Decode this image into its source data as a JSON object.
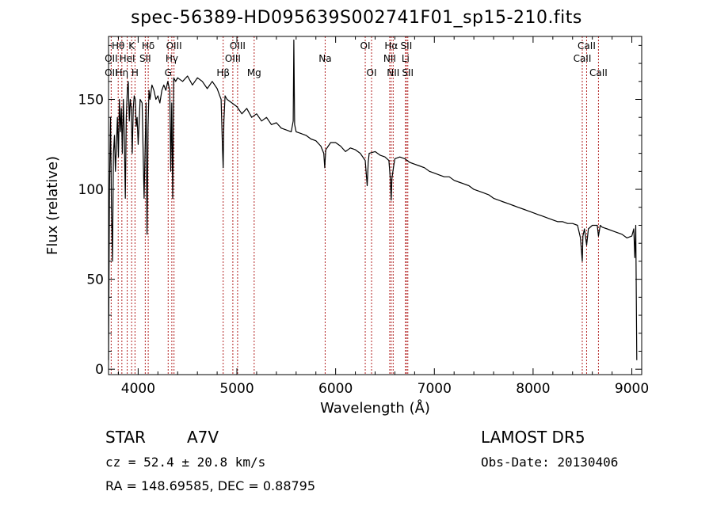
{
  "header": {
    "title": "spec-56389-HD095639S002741F01_sp15-210.fits"
  },
  "info": {
    "object_class": "STAR",
    "subclass": "A7V",
    "survey": "LAMOST DR5",
    "redshift_text": "cz = 52.4 ± 20.8 km/s",
    "obs_date_text": "Obs-Date: 20130406",
    "radec_text": "RA = 148.69585, DEC =   0.88795"
  },
  "chart_data": {
    "type": "line",
    "title": "spec-56389-HD095639S002741F01_sp15-210.fits",
    "xlabel": "Wavelength (Å)",
    "ylabel": "Flux (relative)",
    "xlim": [
      3700,
      9100
    ],
    "ylim": [
      -3,
      185
    ],
    "grid": false,
    "x_ticks": [
      4000,
      5000,
      6000,
      7000,
      8000,
      9000
    ],
    "y_ticks": [
      0,
      50,
      100,
      150
    ],
    "line_color": "#000000",
    "marker_color": "#b22222",
    "series": [
      {
        "x": [
          3700,
          3710,
          3720,
          3730,
          3740,
          3750,
          3760,
          3770,
          3780,
          3790,
          3800,
          3810,
          3820,
          3830,
          3840,
          3850,
          3860,
          3870,
          3880,
          3890,
          3900,
          3910,
          3920,
          3930,
          3940,
          3950,
          3960,
          3970,
          3980,
          3990,
          4000,
          4020,
          4040,
          4060,
          4080,
          4090,
          4100,
          4110,
          4120,
          4140,
          4160,
          4180,
          4200,
          4220,
          4240,
          4260,
          4280,
          4300,
          4320,
          4330,
          4340,
          4350,
          4360,
          4380,
          4400,
          4450,
          4500,
          4550,
          4600,
          4650,
          4700,
          4750,
          4800,
          4840,
          4855,
          4861,
          4868,
          4880,
          4900,
          4950,
          5000,
          5050,
          5100,
          5150,
          5200,
          5250,
          5300,
          5350,
          5400,
          5450,
          5500,
          5550,
          5570,
          5577,
          5585,
          5600,
          5650,
          5700,
          5750,
          5800,
          5850,
          5880,
          5890,
          5900,
          5950,
          6000,
          6050,
          6100,
          6150,
          6200,
          6250,
          6300,
          6320,
          6330,
          6340,
          6400,
          6450,
          6500,
          6540,
          6555,
          6563,
          6570,
          6585,
          6600,
          6650,
          6700,
          6750,
          6800,
          6850,
          6900,
          6950,
          7000,
          7050,
          7100,
          7150,
          7200,
          7250,
          7300,
          7350,
          7400,
          7450,
          7500,
          7550,
          7600,
          7650,
          7700,
          7750,
          7800,
          7850,
          7900,
          7950,
          8000,
          8050,
          8100,
          8150,
          8200,
          8250,
          8300,
          8350,
          8400,
          8450,
          8480,
          8498,
          8505,
          8520,
          8542,
          8560,
          8600,
          8650,
          8662,
          8680,
          8700,
          8750,
          8800,
          8850,
          8900,
          8950,
          9000,
          9020,
          9030,
          9040,
          9050
        ],
        "y": [
          5,
          100,
          140,
          90,
          60,
          120,
          130,
          110,
          125,
          140,
          118,
          150,
          132,
          145,
          120,
          150,
          130,
          95,
          140,
          155,
          160,
          138,
          150,
          145,
          120,
          145,
          152,
          150,
          135,
          140,
          125,
          150,
          148,
          95,
          148,
          75,
          135,
          155,
          150,
          158,
          155,
          150,
          152,
          148,
          155,
          158,
          155,
          160,
          155,
          110,
          148,
          95,
          162,
          160,
          162,
          160,
          163,
          158,
          162,
          160,
          156,
          160,
          156,
          150,
          122,
          112,
          138,
          152,
          150,
          148,
          146,
          142,
          145,
          140,
          142,
          138,
          140,
          136,
          137,
          134,
          133,
          132,
          138,
          183,
          136,
          132,
          131,
          130,
          128,
          127,
          124,
          120,
          112,
          122,
          126,
          126,
          124,
          121,
          123,
          122,
          120,
          116,
          102,
          115,
          120,
          121,
          119,
          118,
          116,
          105,
          94,
          106,
          112,
          117,
          118,
          117,
          115,
          114,
          113,
          112,
          110,
          109,
          108,
          107,
          107,
          105,
          104,
          103,
          102,
          100,
          99,
          98,
          97,
          95,
          94,
          93,
          92,
          91,
          90,
          89,
          88,
          87,
          86,
          85,
          84,
          83,
          82,
          82,
          81,
          81,
          80,
          73,
          60,
          74,
          78,
          69,
          78,
          80,
          80,
          74,
          80,
          79,
          78,
          77,
          76,
          75,
          73,
          74,
          78,
          62,
          80,
          5
        ]
      }
    ],
    "lines": [
      {
        "label": "OII",
        "wavelength": 3727,
        "row": 2
      },
      {
        "label": "Hθ",
        "wavelength": 3798,
        "row": 1
      },
      {
        "label": "OII",
        "wavelength": 3727,
        "row": 3
      },
      {
        "label": "Hη",
        "wavelength": 3835,
        "row": 3
      },
      {
        "label": "HeI",
        "wavelength": 3889,
        "row": 2
      },
      {
        "label": "K",
        "wavelength": 3934,
        "row": 1
      },
      {
        "label": "H",
        "wavelength": 3968,
        "row": 3
      },
      {
        "label": "Hδ",
        "wavelength": 4102,
        "row": 1
      },
      {
        "label": "SII",
        "wavelength": 4072,
        "row": 2
      },
      {
        "label": "OIII",
        "wavelength": 4363,
        "row": 1
      },
      {
        "label": "Hγ",
        "wavelength": 4341,
        "row": 2
      },
      {
        "label": "G",
        "wavelength": 4304,
        "row": 3
      },
      {
        "label": "Hβ",
        "wavelength": 4861,
        "row": 3
      },
      {
        "label": "OIII",
        "wavelength": 4959,
        "row": 2
      },
      {
        "label": "OIII",
        "wavelength": 5007,
        "row": 1
      },
      {
        "label": "Mg",
        "wavelength": 5175,
        "row": 3
      },
      {
        "label": "Na",
        "wavelength": 5894,
        "row": 2
      },
      {
        "label": "OI",
        "wavelength": 6300,
        "row": 1
      },
      {
        "label": "OI",
        "wavelength": 6364,
        "row": 3
      },
      {
        "label": "Hα",
        "wavelength": 6563,
        "row": 1
      },
      {
        "label": "NII",
        "wavelength": 6548,
        "row": 2
      },
      {
        "label": "NII",
        "wavelength": 6583,
        "row": 3
      },
      {
        "label": "SII",
        "wavelength": 6716,
        "row": 1
      },
      {
        "label": "Li",
        "wavelength": 6708,
        "row": 2
      },
      {
        "label": "SII",
        "wavelength": 6731,
        "row": 3
      },
      {
        "label": "CaII",
        "wavelength": 8542,
        "row": 1
      },
      {
        "label": "CaII",
        "wavelength": 8498,
        "row": 2
      },
      {
        "label": "CaII",
        "wavelength": 8662,
        "row": 3
      }
    ]
  }
}
